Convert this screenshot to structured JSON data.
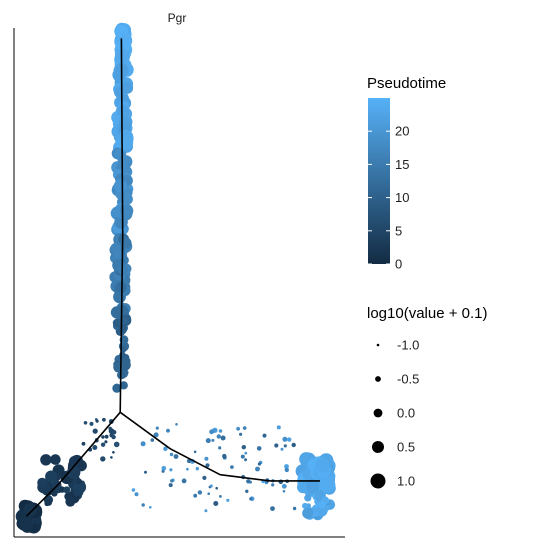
{
  "chart_data": {
    "type": "scatter",
    "facet_title": "Pgr",
    "trajectory_segments": [
      {
        "name": "",
        "points": [
          [
            -6.0,
            11.0
          ],
          [
            -5.8,
            28.0
          ],
          [
            -5.9,
            47.0
          ]
        ]
      },
      {
        "name": "",
        "points": [
          [
            -6.0,
            11.0
          ],
          [
            -11.0,
            4.0
          ],
          [
            -13.5,
            1.0
          ]
        ]
      },
      {
        "name": "",
        "points": [
          [
            -6.0,
            11.0
          ],
          [
            -2.0,
            7.5
          ],
          [
            2.0,
            5.0
          ],
          [
            6.0,
            4.4
          ],
          [
            10.0,
            4.4
          ]
        ]
      }
    ],
    "axis_ranges": {
      "x": [
        -14.5,
        12.0
      ],
      "y": [
        -1.0,
        48.0
      ]
    },
    "clusters": [
      {
        "x": [
          -5.9,
          -5.6
        ],
        "y": [
          44.0,
          48.0
        ],
        "pseudotime": [
          23,
          25
        ],
        "size": [
          0.6,
          1.0
        ],
        "n": 70
      },
      {
        "x": [
          -6.2,
          -5.4
        ],
        "y": [
          36.0,
          44.0
        ],
        "pseudotime": [
          21,
          24
        ],
        "size": [
          0.4,
          0.9
        ],
        "n": 40
      },
      {
        "x": [
          -6.3,
          -5.4
        ],
        "y": [
          28.0,
          36.0
        ],
        "pseudotime": [
          17,
          21
        ],
        "size": [
          0.3,
          0.8
        ],
        "n": 40
      },
      {
        "x": [
          -6.4,
          -5.5
        ],
        "y": [
          20.0,
          28.0
        ],
        "pseudotime": [
          12,
          17
        ],
        "size": [
          0.2,
          0.7
        ],
        "n": 40
      },
      {
        "x": [
          -6.3,
          -5.5
        ],
        "y": [
          13.0,
          20.0
        ],
        "pseudotime": [
          9,
          12
        ],
        "size": [
          -0.6,
          0.5
        ],
        "n": 30
      },
      {
        "x": [
          -13.8,
          -12.8
        ],
        "y": [
          0.0,
          2.0
        ],
        "pseudotime": [
          0,
          2
        ],
        "size": [
          0.5,
          1.0
        ],
        "n": 60
      },
      {
        "x": [
          -12.5,
          -9.0
        ],
        "y": [
          2.0,
          6.5
        ],
        "pseudotime": [
          1,
          4
        ],
        "size": [
          -0.6,
          0.8
        ],
        "n": 40
      },
      {
        "x": [
          -9.0,
          -6.2
        ],
        "y": [
          6.5,
          10.5
        ],
        "pseudotime": [
          4,
          7
        ],
        "size": [
          -1.0,
          -0.5
        ],
        "n": 25
      },
      {
        "x": [
          -5.0,
          8.0
        ],
        "y": [
          1.5,
          10.0
        ],
        "pseudotime": [
          9,
          22
        ],
        "size": [
          -1.0,
          -0.6
        ],
        "n": 90
      },
      {
        "x": [
          8.6,
          10.8
        ],
        "y": [
          3.5,
          6.5
        ],
        "pseudotime": [
          22,
          25
        ],
        "size": [
          0.5,
          1.0
        ],
        "n": 70
      },
      {
        "x": [
          8.6,
          10.8
        ],
        "y": [
          1.0,
          3.0
        ],
        "pseudotime": [
          21,
          25
        ],
        "size": [
          -0.6,
          0.4
        ],
        "n": 25
      }
    ],
    "color_legend": {
      "title": "Pseudotime",
      "ticks": [
        0,
        5,
        10,
        15,
        20
      ],
      "tick_labels": [
        "0",
        "5",
        "10",
        "15",
        "20"
      ],
      "range": [
        0,
        25
      ],
      "low_color": "#132b43",
      "high_color": "#56b1f7"
    },
    "size_legend": {
      "title": "log10(value + 0.1)",
      "values": [
        -1.0,
        -0.5,
        0.0,
        0.5,
        1.0
      ],
      "labels": [
        "-1.0",
        "-0.5",
        "0.0",
        "0.5",
        "1.0"
      ]
    },
    "grid": false,
    "legend_position": "right"
  }
}
